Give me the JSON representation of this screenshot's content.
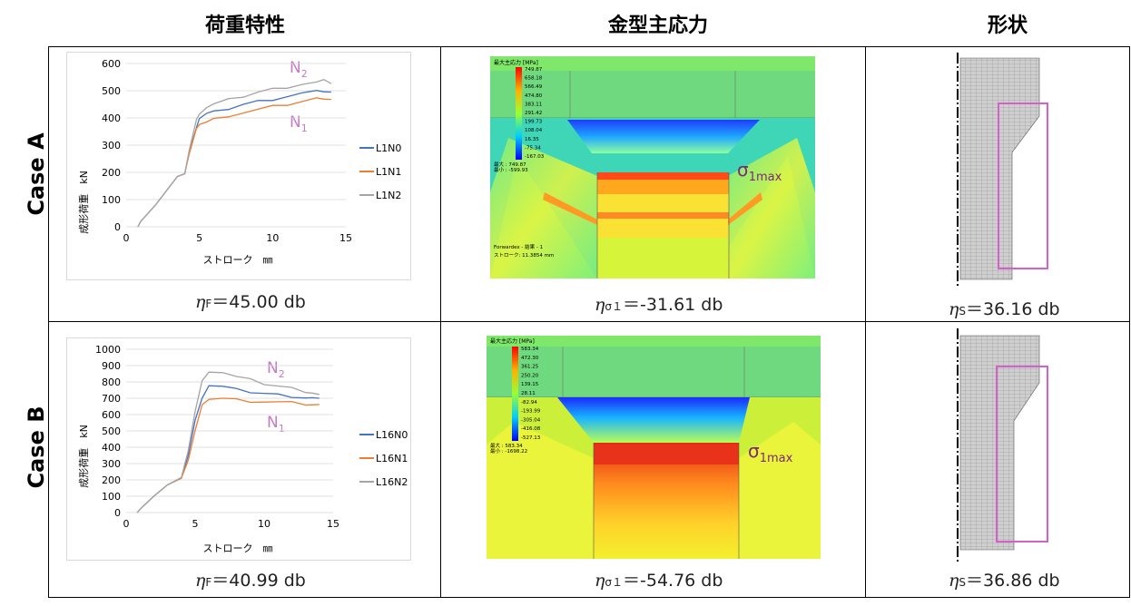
{
  "headers": {
    "load": "荷重特性",
    "stress": "金型主応力",
    "shape": "形状"
  },
  "rows": [
    {
      "label": "Case A",
      "eta_f": {
        "prefix": "η",
        "sub": "F",
        "text": "＝45.00 db"
      },
      "eta_s1": {
        "prefix": "η",
        "sub": "σ１",
        "text": "＝-31.61 db"
      },
      "eta_s": {
        "prefix": "η",
        "sub": "S",
        "text": "＝36.16 db"
      },
      "fem": {
        "legend_title": "最大主応力 [MPa]",
        "scale_values": [
          "749.87",
          "658.18",
          "566.49",
          "474.80",
          "383.11",
          "291.42",
          "199.73",
          "108.04",
          "16.35",
          "-75.34",
          "-167.03"
        ],
        "max_label": "最大 : 749.87",
        "min_label": "最小 : -599.93",
        "footer_1": "Forwardex - 結果 - 1",
        "footer_2": "ストローク: 11.3854 mm",
        "sigma_label": "σ",
        "sigma_sub": "1max"
      },
      "chart_data": {
        "type": "line",
        "xlabel": "ストローク　㎜",
        "ylabel": "成形荷重　kN",
        "xlim": [
          0,
          15
        ],
        "ylim": [
          0,
          600
        ],
        "xticks": [
          0,
          5,
          10,
          15
        ],
        "yticks": [
          0,
          100,
          200,
          300,
          400,
          500,
          600
        ],
        "annotations": [
          {
            "label": "N",
            "sub": "2"
          },
          {
            "label": "N",
            "sub": "1"
          }
        ],
        "series": [
          {
            "name": "L1N0",
            "color": "#4472c4",
            "x": [
              0.8,
              1,
              2,
              3,
              3.5,
              4,
              4.3,
              4.8,
              5,
              5.5,
              6,
              7,
              8,
              9,
              10,
              11,
              12,
              13,
              13.5,
              14
            ],
            "y": [
              0,
              20,
              80,
              150,
              185,
              195,
              270,
              370,
              400,
              415,
              420,
              435,
              450,
              460,
              470,
              480,
              490,
              495,
              500,
              495
            ]
          },
          {
            "name": "L1N1",
            "color": "#ed7d31",
            "x": [
              0.8,
              1,
              2,
              3,
              3.5,
              4,
              4.3,
              4.8,
              5,
              5.5,
              6,
              7,
              8,
              9,
              10,
              11,
              12,
              13,
              13.5,
              14
            ],
            "y": [
              0,
              20,
              80,
              150,
              185,
              195,
              265,
              355,
              380,
              385,
              395,
              410,
              420,
              430,
              440,
              450,
              460,
              470,
              475,
              470
            ]
          },
          {
            "name": "L1N2",
            "color": "#a5a5a5",
            "x": [
              0.8,
              1,
              2,
              3,
              3.5,
              4,
              4.3,
              4.8,
              5,
              5.5,
              6,
              7,
              8,
              9,
              10,
              11,
              12,
              13,
              13.5,
              14
            ],
            "y": [
              0,
              20,
              80,
              150,
              185,
              195,
              280,
              390,
              420,
              440,
              450,
              465,
              480,
              495,
              505,
              515,
              525,
              530,
              535,
              530
            ]
          }
        ]
      }
    },
    {
      "label": "Case B",
      "eta_f": {
        "prefix": "η",
        "sub": "F",
        "text": "＝40.99 db"
      },
      "eta_s1": {
        "prefix": "η",
        "sub": "σ１",
        "text": "＝-54.76 db"
      },
      "eta_s": {
        "prefix": "η",
        "sub": "S",
        "text": "＝36.86 db"
      },
      "fem": {
        "legend_title": "最大主応力 [MPa]",
        "scale_values": [
          "583.34",
          "472.30",
          "361.25",
          "250.20",
          "139.15",
          "28.11",
          "-82.94",
          "-193.99",
          "-305.04",
          "-416.08",
          "-527.13"
        ],
        "max_label": "最大 : 583.34",
        "min_label": "最小 : -1698.22",
        "footer_1": "",
        "footer_2": "",
        "sigma_label": "σ",
        "sigma_sub": "1max"
      },
      "chart_data": {
        "type": "line",
        "xlabel": "ストローク　㎜",
        "ylabel": "成形荷重　kN",
        "xlim": [
          0,
          15
        ],
        "ylim": [
          0,
          1000
        ],
        "xticks": [
          0,
          5,
          10,
          15
        ],
        "yticks": [
          0,
          100,
          200,
          300,
          400,
          500,
          600,
          700,
          800,
          900,
          1000
        ],
        "annotations": [
          {
            "label": "N",
            "sub": "2"
          },
          {
            "label": "N",
            "sub": "1"
          }
        ],
        "series": [
          {
            "name": "L16N0",
            "color": "#4472c4",
            "x": [
              0.8,
              1,
              2,
              3,
              4,
              4.5,
              5,
              5.5,
              6,
              7,
              8,
              9,
              10,
              11,
              12,
              13,
              13.5,
              14
            ],
            "y": [
              0,
              20,
              100,
              170,
              210,
              350,
              560,
              710,
              780,
              770,
              750,
              740,
              730,
              720,
              715,
              705,
              700,
              690
            ]
          },
          {
            "name": "L16N1",
            "color": "#ed7d31",
            "x": [
              0.8,
              1,
              2,
              3,
              4,
              4.5,
              5,
              5.5,
              6,
              7,
              8,
              9,
              10,
              11,
              12,
              13,
              13.5,
              14
            ],
            "y": [
              0,
              20,
              100,
              170,
              210,
              320,
              500,
              650,
              700,
              700,
              690,
              685,
              680,
              675,
              670,
              665,
              660,
              655
            ]
          },
          {
            "name": "L16N2",
            "color": "#a5a5a5",
            "x": [
              0.8,
              1,
              2,
              3,
              4,
              4.5,
              5,
              5.5,
              6,
              7,
              8,
              9,
              10,
              11,
              12,
              13,
              13.5,
              14
            ],
            "y": [
              0,
              20,
              100,
              170,
              215,
              380,
              620,
              800,
              870,
              860,
              830,
              810,
              790,
              775,
              760,
              745,
              735,
              720
            ]
          }
        ]
      }
    }
  ]
}
